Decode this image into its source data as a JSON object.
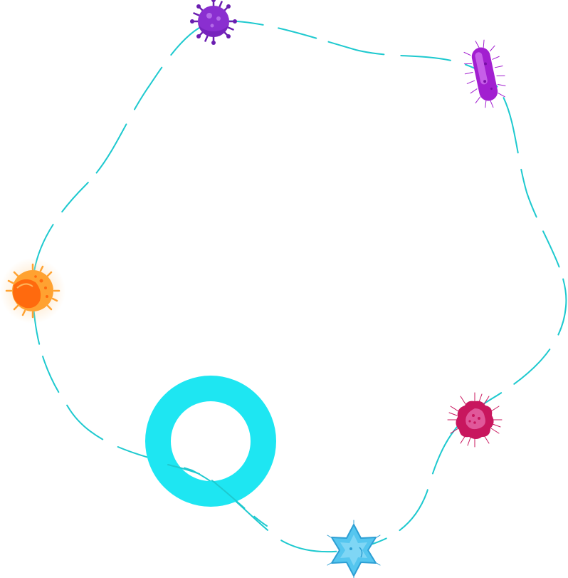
{
  "colors": {
    "path": "#1ec9cf",
    "ring": "#1ee6f2",
    "white": "#ffffff",
    "purple_virus": "#8a2fd0",
    "purple_virus_dark": "#6a1eb0",
    "bacillus": "#a21fd0",
    "bacillus_light": "#c65ee8",
    "magenta": "#c8165e",
    "magenta_light": "#e0589a",
    "star": "#55c6ef",
    "star_dark": "#2d9fd4",
    "orange": "#ffa231",
    "orange_dark": "#ff6a0e",
    "orange_glow": "#ffd9a8"
  },
  "icons": [
    "purple-virus-icon",
    "bacillus-icon",
    "magenta-microbe-icon",
    "star-cell-icon",
    "orange-coccus-icon",
    "ring-icon"
  ]
}
